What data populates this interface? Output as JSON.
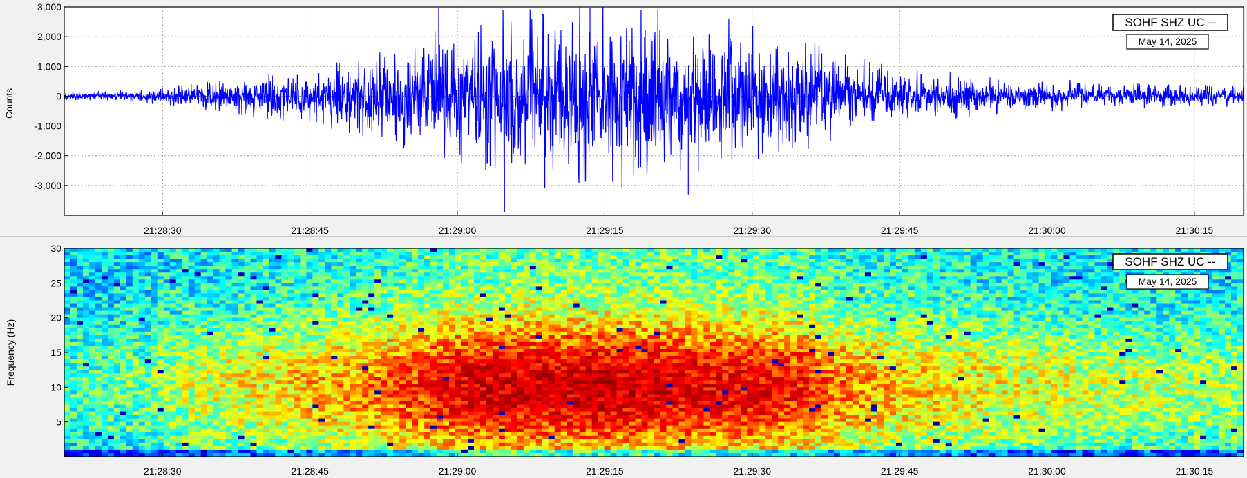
{
  "figure": {
    "background": "#f1f1f1",
    "divider_color": "#999999"
  },
  "chart_data": [
    {
      "type": "line",
      "panel": "waveform",
      "ylabel": "Counts",
      "ylim": [
        -4000,
        3000
      ],
      "y_ticks": [
        3000,
        2000,
        1000,
        0,
        -1000,
        -2000,
        -3000
      ],
      "y_tick_labels": [
        "3,000",
        "2,000",
        "1,000",
        "0",
        "-1,000",
        "-2,000",
        "-3,000"
      ],
      "x_range": [
        "21:28:20",
        "21:30:20"
      ],
      "x_ticks": [
        "21:28:30",
        "21:28:45",
        "21:29:00",
        "21:29:15",
        "21:29:30",
        "21:29:45",
        "21:30:00",
        "21:30:15"
      ],
      "grid": true,
      "line_color": "#0000ff",
      "station_label": "SOHF SHZ UC --",
      "date_label": "May 14, 2025",
      "label_placement": "top-right",
      "envelope": {
        "time": [
          "21:28:20",
          "21:28:28",
          "21:28:33",
          "21:28:43",
          "21:28:50",
          "21:28:55",
          "21:29:00",
          "21:29:05",
          "21:29:10",
          "21:29:15",
          "21:29:20",
          "21:29:25",
          "21:29:30",
          "21:29:35",
          "21:29:38",
          "21:29:45",
          "21:29:55",
          "21:30:05",
          "21:30:20"
        ],
        "amplitude": [
          120,
          180,
          400,
          700,
          1050,
          1500,
          2200,
          2500,
          2450,
          2600,
          2400,
          2200,
          2100,
          1800,
          1200,
          800,
          550,
          400,
          280
        ]
      },
      "peaks": {
        "max": 2950,
        "min": -3900
      }
    },
    {
      "type": "heatmap",
      "panel": "spectrogram",
      "ylabel": "Frequency (Hz)",
      "ylim": [
        0,
        30
      ],
      "y_ticks": [
        5,
        10,
        15,
        20,
        25,
        30
      ],
      "y_tick_labels": [
        "5",
        "10",
        "15",
        "20",
        "25",
        "30"
      ],
      "x_range": [
        "21:28:20",
        "21:30:20"
      ],
      "x_ticks": [
        "21:28:30",
        "21:28:45",
        "21:29:00",
        "21:29:15",
        "21:29:30",
        "21:29:45",
        "21:30:00",
        "21:30:15"
      ],
      "colormap": [
        "#00008f",
        "#0000ff",
        "#00ffff",
        "#ffff00",
        "#ff0000",
        "#800000"
      ],
      "dominant_band_hz": [
        3,
        17
      ],
      "station_label": "SOHF SHZ UC --",
      "date_label": "May 14, 2025",
      "label_placement": "top-right"
    }
  ]
}
